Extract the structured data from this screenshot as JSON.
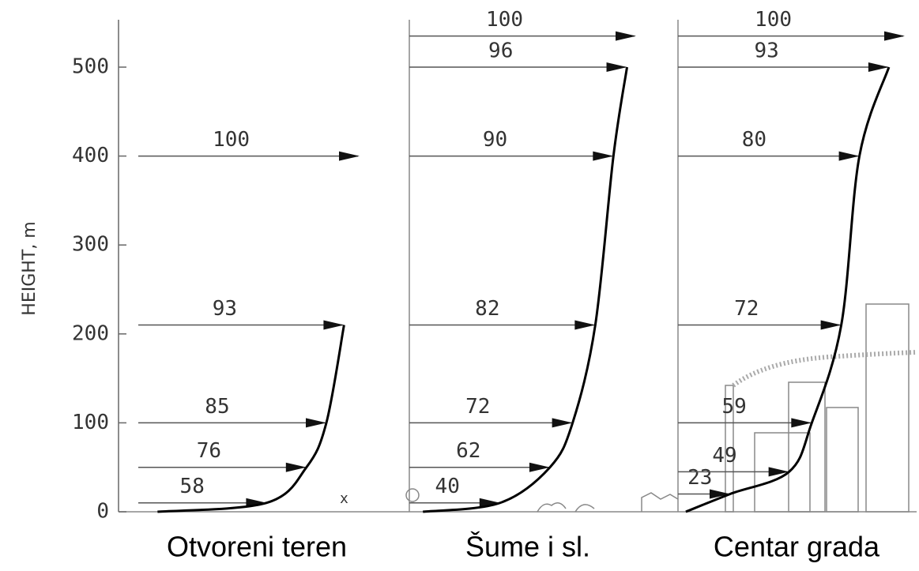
{
  "chart_data": {
    "type": "wind-profile",
    "ylabel": "HEIGHT, m",
    "ylim": [
      0,
      560
    ],
    "yticks": [
      0,
      100,
      200,
      300,
      400,
      500
    ],
    "panels": [
      {
        "name": "Otvoreni teren",
        "heights": [
          10,
          50,
          100,
          210,
          400
        ],
        "values": [
          58,
          76,
          85,
          93,
          100
        ]
      },
      {
        "name": "Šume i sl.",
        "heights": [
          10,
          50,
          100,
          210,
          400,
          500,
          535
        ],
        "values": [
          40,
          62,
          72,
          82,
          90,
          96,
          100
        ]
      },
      {
        "name": "Centar grada",
        "heights": [
          20,
          45,
          100,
          210,
          400,
          500,
          535
        ],
        "values": [
          23,
          49,
          59,
          72,
          80,
          93,
          100
        ]
      }
    ]
  }
}
